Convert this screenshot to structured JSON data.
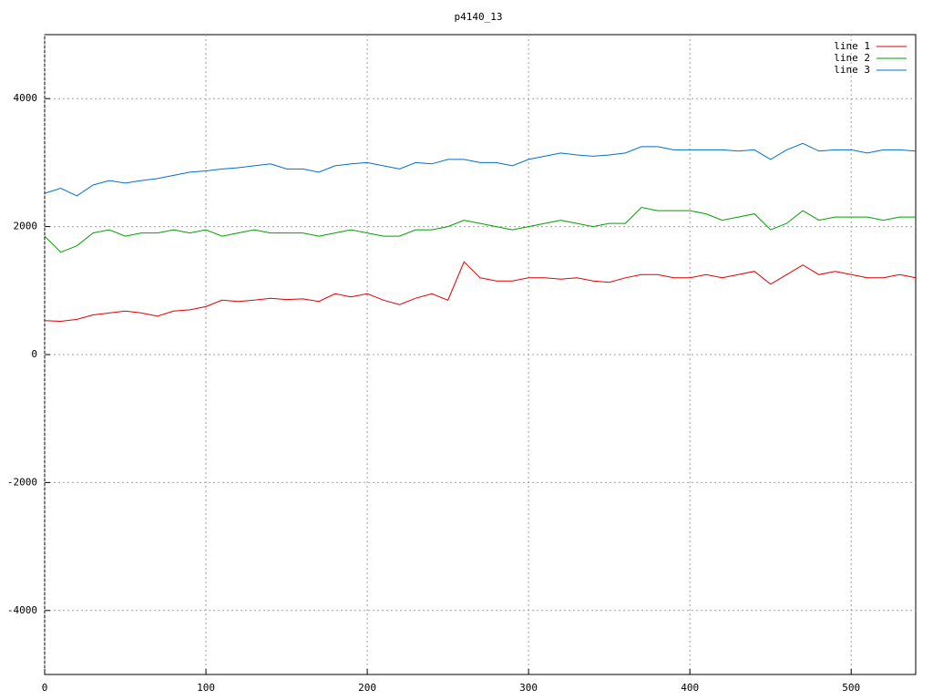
{
  "chart_data": {
    "type": "line",
    "title": "p4140_13",
    "x": [
      0,
      10,
      20,
      30,
      40,
      50,
      60,
      70,
      80,
      90,
      100,
      110,
      120,
      130,
      140,
      150,
      160,
      170,
      180,
      190,
      200,
      210,
      220,
      230,
      240,
      250,
      260,
      270,
      280,
      290,
      300,
      310,
      320,
      330,
      340,
      350,
      360,
      370,
      380,
      390,
      400,
      410,
      420,
      430,
      440,
      450,
      460,
      470,
      480,
      490,
      500,
      510,
      520,
      530,
      540
    ],
    "series": [
      {
        "name": "line 1",
        "color": "#e00000",
        "values": [
          530,
          520,
          550,
          620,
          650,
          680,
          650,
          600,
          680,
          700,
          750,
          850,
          830,
          850,
          880,
          860,
          870,
          830,
          950,
          900,
          950,
          850,
          780,
          880,
          950,
          850,
          1450,
          1200,
          1150,
          1150,
          1200,
          1200,
          1180,
          1200,
          1150,
          1130,
          1200,
          1250,
          1250,
          1200,
          1200,
          1250,
          1200,
          1250,
          1300,
          1100,
          1250,
          1400,
          1250,
          1300,
          1250,
          1200,
          1200,
          1250,
          1200
        ]
      },
      {
        "name": "line 2",
        "color": "#00a000",
        "values": [
          1850,
          1600,
          1700,
          1900,
          1950,
          1850,
          1900,
          1900,
          1950,
          1900,
          1950,
          1850,
          1900,
          1950,
          1900,
          1900,
          1900,
          1850,
          1900,
          1950,
          1900,
          1850,
          1850,
          1950,
          1950,
          2000,
          2100,
          2050,
          2000,
          1950,
          2000,
          2050,
          2100,
          2050,
          2000,
          2050,
          2050,
          2300,
          2250,
          2250,
          2250,
          2200,
          2100,
          2150,
          2200,
          1950,
          2050,
          2250,
          2100,
          2150,
          2150,
          2150,
          2100,
          2150,
          2150
        ]
      },
      {
        "name": "line 3",
        "color": "#0070c8",
        "values": [
          2520,
          2600,
          2480,
          2650,
          2720,
          2680,
          2720,
          2750,
          2800,
          2850,
          2870,
          2900,
          2920,
          2950,
          2980,
          2900,
          2900,
          2850,
          2950,
          2980,
          3000,
          2950,
          2900,
          3000,
          2980,
          3050,
          3050,
          3000,
          3000,
          2950,
          3050,
          3100,
          3150,
          3120,
          3100,
          3120,
          3150,
          3250,
          3250,
          3200,
          3200,
          3200,
          3200,
          3180,
          3200,
          3050,
          3200,
          3300,
          3180,
          3200,
          3200,
          3150,
          3200,
          3200,
          3180
        ]
      }
    ],
    "xlim": [
      0,
      540
    ],
    "ylim": [
      -5000,
      5000
    ],
    "xticks": [
      0,
      100,
      200,
      300,
      400,
      500
    ],
    "yticks": [
      -4000,
      -2000,
      0,
      2000,
      4000
    ],
    "grid": true,
    "legend": "top-right"
  }
}
